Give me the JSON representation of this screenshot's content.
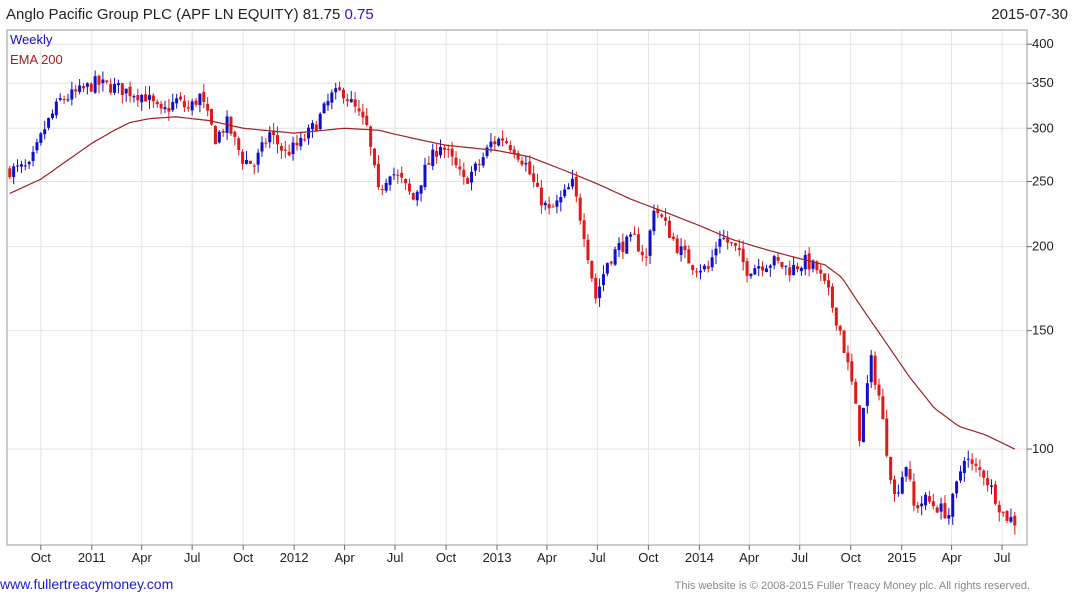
{
  "header": {
    "title": "Anglo Pacific Group PLC (APF LN EQUITY) 81.75",
    "change": "0.75",
    "date": "2015-07-30"
  },
  "legend": {
    "period": "Weekly",
    "ema": "EMA 200"
  },
  "footer": {
    "site": "www.fullertreacymoney.com",
    "copyright": "This website is © 2008-2015 Fuller Treacy Money plc. All rights reserved."
  },
  "colors": {
    "up": "#1010c8",
    "down": "#e01818",
    "ema": "#a02020",
    "grid": "#e2e2e2"
  },
  "chart_data": {
    "type": "candlestick",
    "scale": "log",
    "ylim": [
      72,
      420
    ],
    "y_ticks": [
      100,
      150,
      200,
      250,
      300,
      350,
      400
    ],
    "y_tick_labels": [
      "100",
      "150",
      "200",
      "250",
      "300",
      "350",
      "400"
    ],
    "x_ticks": [
      "Oct",
      "2011",
      "Apr",
      "Jul",
      "Oct",
      "2012",
      "Apr",
      "Jul",
      "Oct",
      "2013",
      "Apr",
      "Jul",
      "Oct",
      "2014",
      "Apr",
      "Jul",
      "Oct",
      "2015",
      "Apr",
      "Jul"
    ],
    "x_tick_dates": [
      "2010-10-01",
      "2011-01-01",
      "2011-04-01",
      "2011-07-01",
      "2011-10-01",
      "2012-01-01",
      "2012-04-01",
      "2012-07-01",
      "2012-10-01",
      "2013-01-01",
      "2013-04-01",
      "2013-07-01",
      "2013-10-01",
      "2014-01-01",
      "2014-04-01",
      "2014-07-01",
      "2014-10-01",
      "2015-01-01",
      "2015-04-01",
      "2015-07-01"
    ],
    "x_range": [
      "2010-08-01",
      "2015-08-15"
    ],
    "price_path": [
      [
        "2010-08-06",
        260
      ],
      [
        "2010-09-10",
        262
      ],
      [
        "2010-10-08",
        300
      ],
      [
        "2010-11-05",
        330
      ],
      [
        "2010-12-10",
        340
      ],
      [
        "2011-01-07",
        350
      ],
      [
        "2011-02-11",
        345
      ],
      [
        "2011-03-11",
        340
      ],
      [
        "2011-04-08",
        335
      ],
      [
        "2011-05-06",
        315
      ],
      [
        "2011-06-03",
        330
      ],
      [
        "2011-06-24",
        320
      ],
      [
        "2011-07-15",
        335
      ],
      [
        "2011-08-12",
        290
      ],
      [
        "2011-09-02",
        305
      ],
      [
        "2011-09-30",
        270
      ],
      [
        "2011-10-21",
        265
      ],
      [
        "2011-11-18",
        295
      ],
      [
        "2011-12-16",
        275
      ],
      [
        "2012-01-13",
        285
      ],
      [
        "2012-02-10",
        305
      ],
      [
        "2012-03-09",
        335
      ],
      [
        "2012-03-30",
        340
      ],
      [
        "2012-04-20",
        320
      ],
      [
        "2012-05-11",
        300
      ],
      [
        "2012-06-01",
        240
      ],
      [
        "2012-06-22",
        260
      ],
      [
        "2012-07-13",
        250
      ],
      [
        "2012-08-03",
        235
      ],
      [
        "2012-08-24",
        260
      ],
      [
        "2012-09-21",
        285
      ],
      [
        "2012-10-12",
        268
      ],
      [
        "2012-11-02",
        250
      ],
      [
        "2012-11-30",
        265
      ],
      [
        "2012-12-21",
        285
      ],
      [
        "2013-01-11",
        290
      ],
      [
        "2013-02-01",
        280
      ],
      [
        "2013-02-22",
        265
      ],
      [
        "2013-03-15",
        240
      ],
      [
        "2013-04-05",
        225
      ],
      [
        "2013-04-26",
        235
      ],
      [
        "2013-05-17",
        248
      ],
      [
        "2013-06-07",
        210
      ],
      [
        "2013-06-28",
        168
      ],
      [
        "2013-07-19",
        190
      ],
      [
        "2013-08-09",
        200
      ],
      [
        "2013-09-06",
        205
      ],
      [
        "2013-09-27",
        192
      ],
      [
        "2013-10-11",
        230
      ],
      [
        "2013-11-01",
        215
      ],
      [
        "2013-11-22",
        200
      ],
      [
        "2013-12-20",
        188
      ],
      [
        "2014-01-17",
        185
      ],
      [
        "2014-02-07",
        208
      ],
      [
        "2014-03-07",
        198
      ],
      [
        "2014-03-28",
        185
      ],
      [
        "2014-04-18",
        188
      ],
      [
        "2014-05-16",
        190
      ],
      [
        "2014-06-13",
        185
      ],
      [
        "2014-07-11",
        190
      ],
      [
        "2014-08-01",
        185
      ],
      [
        "2014-08-22",
        170
      ],
      [
        "2014-09-12",
        150
      ],
      [
        "2014-10-03",
        125
      ],
      [
        "2014-10-17",
        105
      ],
      [
        "2014-11-07",
        135
      ],
      [
        "2014-11-21",
        120
      ],
      [
        "2014-12-05",
        100
      ],
      [
        "2014-12-19",
        85
      ],
      [
        "2015-01-09",
        95
      ],
      [
        "2015-01-23",
        82
      ],
      [
        "2015-02-13",
        84
      ],
      [
        "2015-03-06",
        82
      ],
      [
        "2015-03-27",
        80
      ],
      [
        "2015-04-10",
        88
      ],
      [
        "2015-04-24",
        98
      ],
      [
        "2015-05-08",
        94
      ],
      [
        "2015-05-29",
        92
      ],
      [
        "2015-06-19",
        85
      ],
      [
        "2015-07-03",
        80
      ],
      [
        "2015-07-24",
        78
      ]
    ],
    "ema_path": [
      [
        "2010-08-06",
        240
      ],
      [
        "2010-10-01",
        252
      ],
      [
        "2011-01-01",
        285
      ],
      [
        "2011-02-11",
        298
      ],
      [
        "2011-03-11",
        306
      ],
      [
        "2011-04-15",
        310
      ],
      [
        "2011-06-01",
        312
      ],
      [
        "2011-08-01",
        308
      ],
      [
        "2011-10-01",
        300
      ],
      [
        "2012-01-01",
        295
      ],
      [
        "2012-04-01",
        300
      ],
      [
        "2012-06-01",
        298
      ],
      [
        "2012-08-01",
        290
      ],
      [
        "2012-10-01",
        283
      ],
      [
        "2013-01-01",
        278
      ],
      [
        "2013-03-01",
        272
      ],
      [
        "2013-05-01",
        260
      ],
      [
        "2013-07-01",
        248
      ],
      [
        "2013-09-01",
        235
      ],
      [
        "2013-11-01",
        225
      ],
      [
        "2014-01-01",
        215
      ],
      [
        "2014-03-01",
        205
      ],
      [
        "2014-05-01",
        198
      ],
      [
        "2014-07-01",
        192
      ],
      [
        "2014-08-15",
        188
      ],
      [
        "2014-09-15",
        180
      ],
      [
        "2014-10-15",
        165
      ],
      [
        "2014-12-01",
        145
      ],
      [
        "2015-01-15",
        128
      ],
      [
        "2015-03-01",
        115
      ],
      [
        "2015-04-15",
        108
      ],
      [
        "2015-06-01",
        105
      ],
      [
        "2015-07-24",
        100
      ]
    ]
  }
}
